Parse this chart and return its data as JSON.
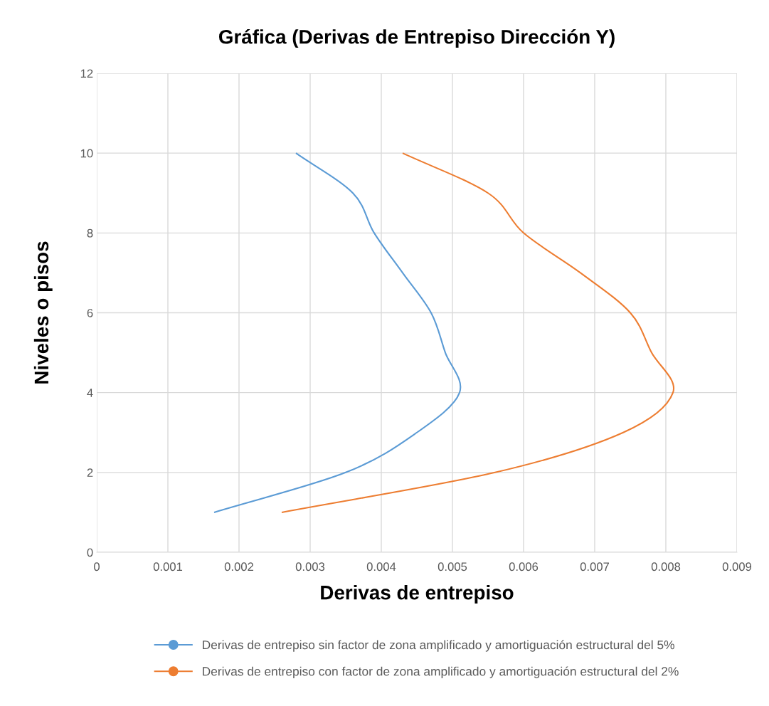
{
  "chart_data": {
    "type": "line",
    "title": "Gráfica (Derivas de Entrepiso Dirección Y)",
    "xlabel": "Derivas de entrepiso",
    "ylabel": "Niveles o pisos",
    "series": [
      {
        "name": "Derivas de entrepiso sin factor de zona amplificado y amortiguación estructural del 5%",
        "color": "#5b9bd5",
        "x": [
          0.00165,
          0.0035,
          0.0045,
          0.0051,
          0.0049,
          0.0047,
          0.0043,
          0.0039,
          0.0036,
          0.0028
        ],
        "values": [
          1,
          2,
          3,
          4,
          5,
          6,
          7,
          8,
          9,
          10
        ]
      },
      {
        "name": "Derivas de entrepiso con factor de zona amplificado y amortiguación estructural del 2%",
        "color": "#ed7d31",
        "x": [
          0.0026,
          0.0056,
          0.0074,
          0.0081,
          0.0078,
          0.0075,
          0.0068,
          0.006,
          0.0055,
          0.0043
        ],
        "values": [
          1,
          2,
          3,
          4,
          5,
          6,
          7,
          8,
          9,
          10
        ]
      }
    ],
    "xlim": [
      0,
      0.009
    ],
    "xticks": [
      0,
      0.001,
      0.002,
      0.003,
      0.004,
      0.005,
      0.006,
      0.007,
      0.008,
      0.009
    ],
    "ylim": [
      0,
      12
    ],
    "yticks": [
      0,
      2,
      4,
      6,
      8,
      10,
      12
    ],
    "grid": true,
    "legend": "bottom"
  }
}
